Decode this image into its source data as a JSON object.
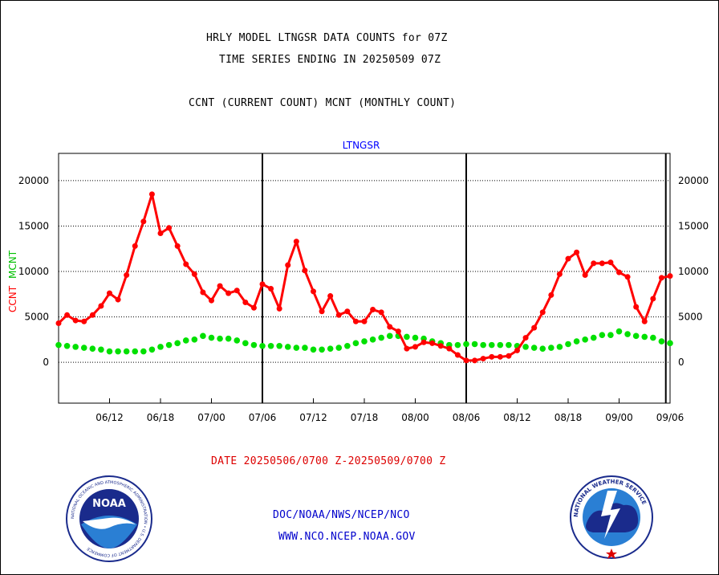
{
  "header": {
    "title_line1": "HRLY MODEL LTNGSR DATA COUNTS for 07Z",
    "title_line2": "TIME SERIES ENDING IN 20250509 07Z",
    "subtitle": "CCNT (CURRENT COUNT) MCNT (MONTHLY COUNT)"
  },
  "footer": {
    "date_range": "DATE 20250506/0700 Z-20250509/0700 Z",
    "org_path": "DOC/NOAA/NWS/NCEP/NCO",
    "website": "WWW.NCO.NCEP.NOAA.GOV"
  },
  "logos": {
    "left": {
      "center_text": "NOAA",
      "ring_text": "NATIONAL OCEANIC AND ATMOSPHERIC ADMINISTRATION • U.S. DEPARTMENT OF COMMERCE"
    },
    "right": {
      "ring_text": "NATIONAL WEATHER SERVICE"
    }
  },
  "colors": {
    "ccnt": "#ff0000",
    "mcnt": "#00e000",
    "plot_title": "#0000ff",
    "footer_link": "#0000cc",
    "grid": "#000000"
  },
  "chart_data": {
    "type": "line",
    "plot_title": "LTNGSR",
    "ylabel_ccnt": "CCNT",
    "ylabel_mcnt": "MCNT",
    "ylim": [
      -4500,
      23000
    ],
    "yticks": [
      0,
      5000,
      10000,
      15000,
      20000
    ],
    "ytick_labels": [
      "0",
      "5000",
      "10000",
      "15000",
      "20000"
    ],
    "xlim": [
      0,
      72
    ],
    "xticks": [
      6,
      12,
      18,
      24,
      30,
      36,
      42,
      48,
      54,
      60,
      66,
      72
    ],
    "xtick_labels": [
      "06/12",
      "06/18",
      "07/00",
      "07/06",
      "07/12",
      "07/18",
      "08/00",
      "08/06",
      "08/12",
      "08/18",
      "09/00",
      "09/06"
    ],
    "day_separators": [
      24,
      48,
      71.5
    ],
    "grid": true,
    "x": [
      0,
      1,
      2,
      3,
      4,
      5,
      6,
      7,
      8,
      9,
      10,
      11,
      12,
      13,
      14,
      15,
      16,
      17,
      18,
      19,
      20,
      21,
      22,
      23,
      24,
      25,
      26,
      27,
      28,
      29,
      30,
      31,
      32,
      33,
      34,
      35,
      36,
      37,
      38,
      39,
      40,
      41,
      42,
      43,
      44,
      45,
      46,
      47,
      48,
      49,
      50,
      51,
      52,
      53,
      54,
      55,
      56,
      57,
      58,
      59,
      60,
      61,
      62,
      63,
      64,
      65,
      66,
      67,
      68,
      69,
      70,
      71,
      72
    ],
    "series": [
      {
        "name": "CCNT",
        "values": [
          4300,
          5200,
          4600,
          4500,
          5200,
          6200,
          7600,
          6900,
          9600,
          12800,
          15500,
          18500,
          14200,
          14800,
          12800,
          10800,
          9700,
          7700,
          6800,
          8400,
          7600,
          7900,
          6600,
          6000,
          8600,
          8100,
          5900,
          10700,
          13300,
          10100,
          7800,
          5600,
          7300,
          5200,
          5600,
          4500,
          4500,
          5800,
          5500,
          3900,
          3400,
          1500,
          1700,
          2200,
          2100,
          1800,
          1500,
          800,
          200,
          200,
          400,
          600,
          600,
          700,
          1300,
          2700,
          3800,
          5500,
          7400,
          9700,
          11400,
          12100,
          9600,
          10900,
          10900,
          11000,
          9900,
          9400,
          6100,
          4500,
          7000,
          9300,
          9500
        ]
      },
      {
        "name": "MCNT",
        "values": [
          1900,
          1800,
          1700,
          1600,
          1500,
          1400,
          1200,
          1200,
          1200,
          1200,
          1200,
          1400,
          1700,
          1900,
          2100,
          2400,
          2500,
          2900,
          2700,
          2600,
          2600,
          2400,
          2100,
          1900,
          1800,
          1800,
          1800,
          1700,
          1600,
          1600,
          1400,
          1400,
          1500,
          1600,
          1800,
          2100,
          2300,
          2500,
          2700,
          2900,
          2900,
          2800,
          2700,
          2600,
          2300,
          2100,
          1900,
          1900,
          2000,
          2000,
          1900,
          1900,
          1900,
          1900,
          1800,
          1700,
          1600,
          1500,
          1600,
          1700,
          2000,
          2300,
          2500,
          2700,
          3000,
          3000,
          3400,
          3100,
          2900,
          2800,
          2700,
          2300,
          2100
        ]
      }
    ]
  }
}
